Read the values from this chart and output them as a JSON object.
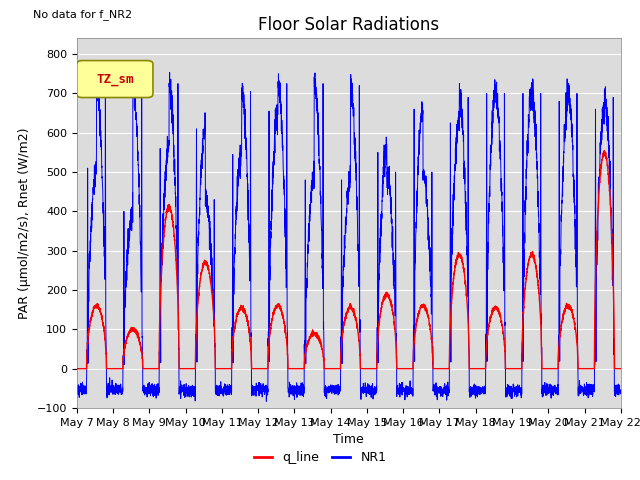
{
  "title": "Floor Solar Radiations",
  "top_left_text": "No data for f_NR2",
  "legend_box_text": "TZ_sm",
  "xlabel": "Time",
  "ylabel": "PAR (μmol/m2/s), Rnet (W/m2)",
  "ylim": [
    -100,
    840
  ],
  "yticks": [
    -100,
    0,
    100,
    200,
    300,
    400,
    500,
    600,
    700,
    800
  ],
  "start_day": 7,
  "num_days": 15,
  "red_color": "#FF0000",
  "blue_color": "#0000FF",
  "bg_color": "#DCDCDC",
  "legend_q_line": "q_line",
  "legend_NR1": "NR1",
  "title_fontsize": 12,
  "label_fontsize": 9,
  "tick_fontsize": 8,
  "day_peaks_red": [
    160,
    100,
    410,
    270,
    155,
    160,
    90,
    155,
    190,
    160,
    290,
    155,
    290,
    160,
    550
  ],
  "day_peaks_blue_morning": [
    510,
    400,
    560,
    610,
    545,
    655,
    480,
    480,
    550,
    660,
    625,
    700,
    700,
    680,
    660
  ],
  "day_peaks_blue_afternoon": [
    720,
    720,
    725,
    430,
    705,
    725,
    725,
    720,
    500,
    500,
    690,
    700,
    700,
    700,
    690
  ],
  "night_val": -55
}
